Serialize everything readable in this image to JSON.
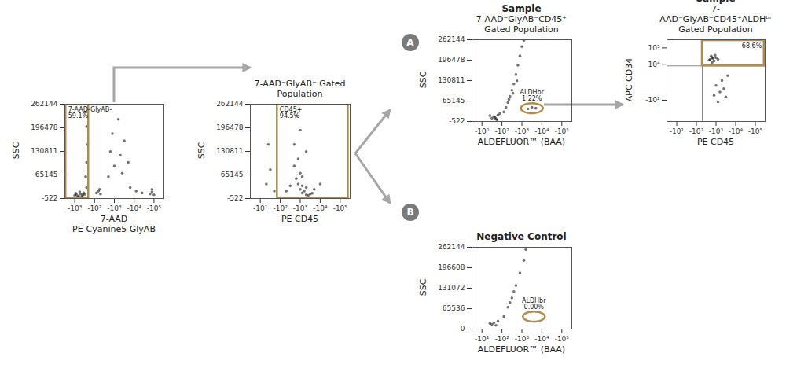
{
  "chart_data": [
    {
      "type": "scatter",
      "x_label": "7-AAD\nPE-Cyanine5 GlyAB",
      "y_label": "SSC",
      "color": "#000000",
      "xlim": [
        0,
        5
      ],
      "xticks": [
        {
          "value": 0.5,
          "label": "-10³"
        },
        {
          "value": 1.5,
          "label": "-10²"
        },
        {
          "value": 2.5,
          "label": "-10³"
        },
        {
          "value": 3.5,
          "label": "-10⁴"
        },
        {
          "value": 4.5,
          "label": "-10⁵"
        }
      ],
      "ylim": [
        -522,
        262144
      ],
      "yticks": [
        -522,
        65145,
        130811,
        196478,
        262144
      ],
      "points": {
        "x": [
          0.5,
          0.6,
          0.7,
          0.8,
          0.9,
          0.55,
          0.75,
          0.95,
          0.65,
          0.85,
          1.0,
          1.1,
          1.05,
          1.1,
          1.15,
          1.1,
          1.05,
          1.6,
          1.7,
          1.8,
          1.75,
          2.2,
          2.5,
          2.8,
          3.0,
          2.4,
          2.7,
          3.2,
          2.9,
          2.3,
          4.3,
          4.4,
          4.5,
          4.4,
          3.3,
          3.6,
          3.9
        ],
        "y": [
          8000,
          10000,
          6000,
          12000,
          9000,
          14000,
          18000,
          15000,
          4000,
          5000,
          11000,
          30000,
          60000,
          100000,
          150000,
          200000,
          240000,
          15000,
          20000,
          12000,
          25000,
          60000,
          90000,
          120000,
          160000,
          180000,
          220000,
          100000,
          70000,
          130000,
          12000,
          18000,
          10000,
          25000,
          30000,
          20000,
          15000
        ]
      },
      "gate": {
        "shape": "rect",
        "x": [
          0.05,
          1.2
        ],
        "y": [
          -522,
          262144
        ],
        "color": "#b08d4f",
        "label": "7-AAD-GlyAB-",
        "value": 59.1,
        "value_label": "59.1%"
      }
    },
    {
      "type": "scatter",
      "subtitle": "7-AAD⁻GlyAB⁻ Gated Population",
      "x_label": "PE CD45",
      "y_label": "SSC",
      "color": "#000000",
      "xlim": [
        0,
        5
      ],
      "xticks": [
        {
          "value": 0.5,
          "label": "-10¹"
        },
        {
          "value": 1.5,
          "label": "-10²"
        },
        {
          "value": 2.5,
          "label": "-10³"
        },
        {
          "value": 3.5,
          "label": "-10⁴"
        },
        {
          "value": 4.5,
          "label": "-10⁵"
        }
      ],
      "ylim": [
        -522,
        262144
      ],
      "yticks": [
        -522,
        65145,
        130811,
        196478,
        262144
      ],
      "points": {
        "x": [
          0.8,
          1.0,
          1.2,
          0.9,
          2.6,
          2.8,
          3.0,
          2.7,
          2.9,
          3.1,
          2.5,
          2.4,
          2.6,
          2.3,
          2.5,
          2.2,
          2.4,
          2.6,
          2.8,
          3.2,
          2.2,
          2.5,
          2.3,
          2.8,
          1.8,
          2.0,
          3.5
        ],
        "y": [
          40000,
          80000,
          20000,
          150000,
          15000,
          10000,
          12000,
          20000,
          8000,
          14000,
          25000,
          40000,
          35000,
          55000,
          70000,
          90000,
          110000,
          60000,
          30000,
          25000,
          150000,
          190000,
          230000,
          130000,
          20000,
          35000,
          40000
        ]
      },
      "gate": {
        "shape": "rect",
        "x": [
          1.35,
          4.9
        ],
        "y": [
          -522,
          262144
        ],
        "color": "#b08d4f",
        "label": "CD45+",
        "value": 94.5,
        "value_label": "94.5%"
      }
    },
    {
      "type": "scatter",
      "panel_label": "A",
      "title": "Sample",
      "subtitle": "7-AAD⁻GlyAB⁻CD45⁺ Gated Population",
      "x_label": "ALDEFLUOR™ (BAA)",
      "y_label": "SSC",
      "color": "#000000",
      "xlim": [
        0,
        5
      ],
      "xticks": [
        {
          "value": 0.5,
          "label": "-10⁰"
        },
        {
          "value": 1.5,
          "label": "-10²"
        },
        {
          "value": 2.5,
          "label": "-10³"
        },
        {
          "value": 3.5,
          "label": "-10⁴"
        },
        {
          "value": 4.5,
          "label": "-10⁵"
        }
      ],
      "ylim": [
        -522,
        262144
      ],
      "yticks": [
        -522,
        65145,
        130811,
        196478,
        262144
      ],
      "points": {
        "x": [
          1.0,
          1.1,
          1.2,
          1.3,
          0.9,
          1.15,
          1.4,
          1.25,
          1.6,
          1.7,
          1.8,
          1.9,
          2.0,
          2.1,
          2.2,
          2.3,
          2.4,
          2.5,
          2.6,
          1.85,
          2.05,
          2.25,
          2.8,
          3.0,
          3.2
        ],
        "y": [
          10000,
          15000,
          8000,
          20000,
          18000,
          12000,
          25000,
          5000,
          30000,
          45000,
          60000,
          80000,
          100000,
          120000,
          150000,
          180000,
          210000,
          240000,
          260000,
          70000,
          90000,
          130000,
          40000,
          45000,
          42000
        ]
      },
      "gate": {
        "shape": "ellipse",
        "cx": 3.0,
        "cy": 42000,
        "rx": 0.55,
        "ry": 16000,
        "color": "#b08d4f",
        "label": "ALDHbr",
        "value": 1.22,
        "value_label": "1.22%"
      }
    },
    {
      "type": "scatter",
      "title": "Sample",
      "subtitle": "7-AAD⁻GlyAB⁻CD45⁺ALDHᵇʳ Gated Population",
      "x_label": "PE CD45",
      "y_label": "APC CD34",
      "color": "#000000",
      "xlim": [
        0,
        5
      ],
      "xticks": [
        {
          "value": 0.5,
          "label": "-10¹"
        },
        {
          "value": 1.5,
          "label": "-10²"
        },
        {
          "value": 2.5,
          "label": "-10³"
        },
        {
          "value": 3.5,
          "label": "-10⁴"
        },
        {
          "value": 4.5,
          "label": "-10⁵"
        }
      ],
      "ylim": [
        0,
        5
      ],
      "yticks": [
        {
          "value": 1.3,
          "label": "-10²"
        },
        {
          "value": 3.5,
          "label": "10⁴"
        },
        {
          "value": 4.5,
          "label": "10⁵"
        }
      ],
      "points": {
        "x": [
          2.2,
          2.3,
          2.4,
          2.25,
          2.35,
          2.15,
          2.5,
          2.3,
          2.45,
          2.6,
          2.5,
          2.7,
          2.8,
          3.0,
          2.6,
          2.9,
          3.1,
          2.4
        ],
        "y": [
          3.8,
          3.9,
          3.7,
          4.0,
          3.85,
          3.75,
          3.9,
          3.6,
          4.05,
          3.8,
          2.2,
          1.8,
          2.5,
          1.5,
          1.2,
          2.0,
          2.8,
          1.6
        ]
      },
      "quadrant": {
        "x": 1.8,
        "y": 3.4
      },
      "gate": {
        "shape": "rect",
        "x": [
          1.8,
          4.95
        ],
        "y": [
          3.4,
          4.95
        ],
        "color": "#b08d4f",
        "value": 68.6,
        "value_label": "68.6%"
      }
    },
    {
      "type": "scatter",
      "panel_label": "B",
      "title": "Negative Control",
      "x_label": "ALDEFLUOR™ (BAA)",
      "y_label": "SSC",
      "color": "#000000",
      "xlim": [
        0,
        5
      ],
      "xticks": [
        {
          "value": 0.5,
          "label": "-10¹"
        },
        {
          "value": 1.5,
          "label": "-10²"
        },
        {
          "value": 2.5,
          "label": "-10³"
        },
        {
          "value": 3.5,
          "label": "-10⁴"
        },
        {
          "value": 4.5,
          "label": "-10⁵"
        }
      ],
      "ylim": [
        0,
        262144
      ],
      "yticks": [
        0,
        65536,
        131072,
        196608,
        262144
      ],
      "points": {
        "x": [
          1.0,
          1.1,
          1.2,
          1.3,
          0.9,
          1.6,
          1.8,
          2.0,
          2.2,
          2.4,
          2.6,
          2.7,
          1.9,
          2.1
        ],
        "y": [
          15000,
          20000,
          12000,
          25000,
          18000,
          40000,
          70000,
          100000,
          140000,
          180000,
          220000,
          255000,
          85000,
          120000
        ]
      },
      "gate": {
        "shape": "ellipse",
        "cx": 3.1,
        "cy": 40000,
        "rx": 0.55,
        "ry": 16000,
        "color": "#b08d4f",
        "label": "ALDHbr",
        "value": 0.0,
        "value_label": "0.00%"
      }
    }
  ]
}
